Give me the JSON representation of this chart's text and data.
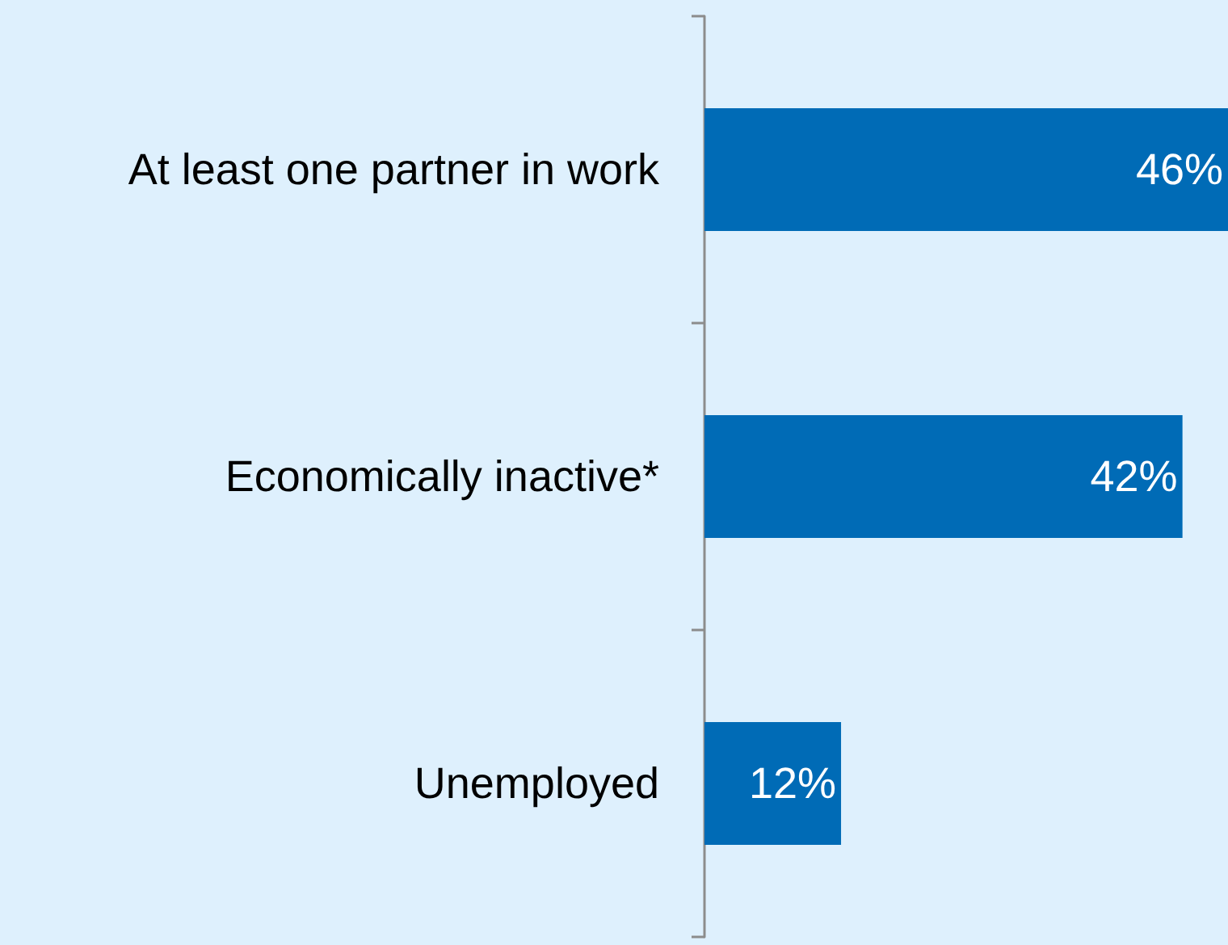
{
  "chart_data": {
    "type": "bar",
    "orientation": "horizontal",
    "categories": [
      "At least one partner in work",
      "Economically inactive*",
      "Unemployed"
    ],
    "values": [
      46,
      42,
      12
    ],
    "value_labels": [
      "46%",
      "42%",
      "12%"
    ],
    "color": "#006bb6"
  }
}
